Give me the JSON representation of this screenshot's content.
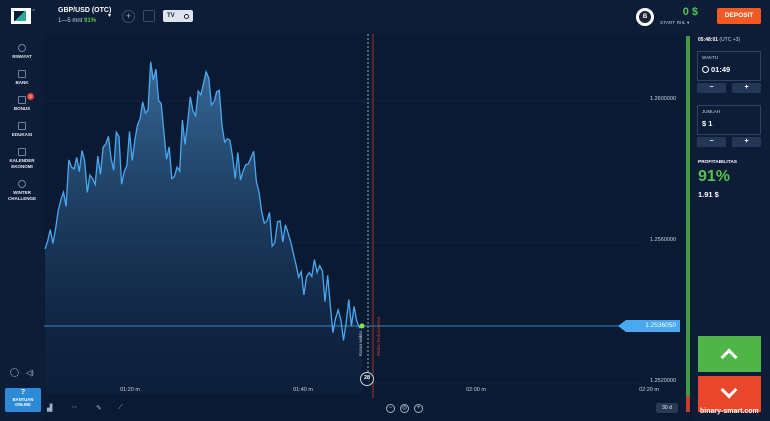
{
  "header": {
    "asset_name": "GBP/USD (OTC)",
    "asset_range": "1—5 mnt",
    "asset_payout": "91%",
    "tv_label": "TV",
    "avatar_initial": "B",
    "balance": "0 $",
    "account_type": "START RIIL ▾",
    "deposit_label": "DEPOSIT"
  },
  "sidebar": {
    "items": [
      {
        "label": "RIWAYAT",
        "icon": "history-icon"
      },
      {
        "label": "BANK",
        "icon": "bank-icon"
      },
      {
        "label": "BONUS",
        "icon": "gift-icon",
        "badge": "2"
      },
      {
        "label": "EDUKASI",
        "icon": "education-icon"
      },
      {
        "label": "KALENDER EKONOMI",
        "icon": "calendar-icon"
      },
      {
        "label": "WINTER CHALLENGE",
        "icon": "trophy-icon"
      }
    ],
    "help_icon": "?",
    "help_label": "BANTUAN ONLINE"
  },
  "chart": {
    "y_labels": [
      "1.2600000",
      "1.2560000",
      "1.2520000"
    ],
    "x_labels": [
      "01:20 m",
      "01:40 m",
      "02:00 m",
      "02:20 m"
    ],
    "current_price": "1.2536050",
    "tick_counter": "28",
    "purchase_label": "Kurun waktu",
    "expiry_label": "Waktu kedaluwarsa",
    "timeframe": "30 d",
    "line_color": "#4aa8f0"
  },
  "chart_data": {
    "type": "area",
    "ylim": [
      1.252,
      1.26
    ],
    "x": [
      "01:10",
      "01:12",
      "01:14",
      "01:16",
      "01:18",
      "01:20",
      "01:22",
      "01:24",
      "01:26",
      "01:28",
      "01:30",
      "01:32",
      "01:34",
      "01:36",
      "01:38",
      "01:40",
      "01:42",
      "01:44",
      "01:46",
      "01:48",
      "01:50"
    ],
    "values": [
      1.2558,
      1.2572,
      1.2584,
      1.2578,
      1.259,
      1.258,
      1.2595,
      1.2609,
      1.2578,
      1.2594,
      1.2605,
      1.2603,
      1.2578,
      1.2584,
      1.2566,
      1.256,
      1.255,
      1.2555,
      1.2542,
      1.2537,
      1.2536
    ]
  },
  "panel": {
    "server_time": "05:48:01",
    "timezone": "(UTC +3)",
    "time_label": "WAKTU",
    "time_value": "01:49",
    "amount_label": "JUMLAH",
    "amount_value": "$ 1",
    "minus": "−",
    "plus": "+",
    "profit_label": "PROFITABILITAS",
    "profit_percent": "91%",
    "profit_amount": "1.91 $"
  },
  "watermark": "binary-smart.com"
}
